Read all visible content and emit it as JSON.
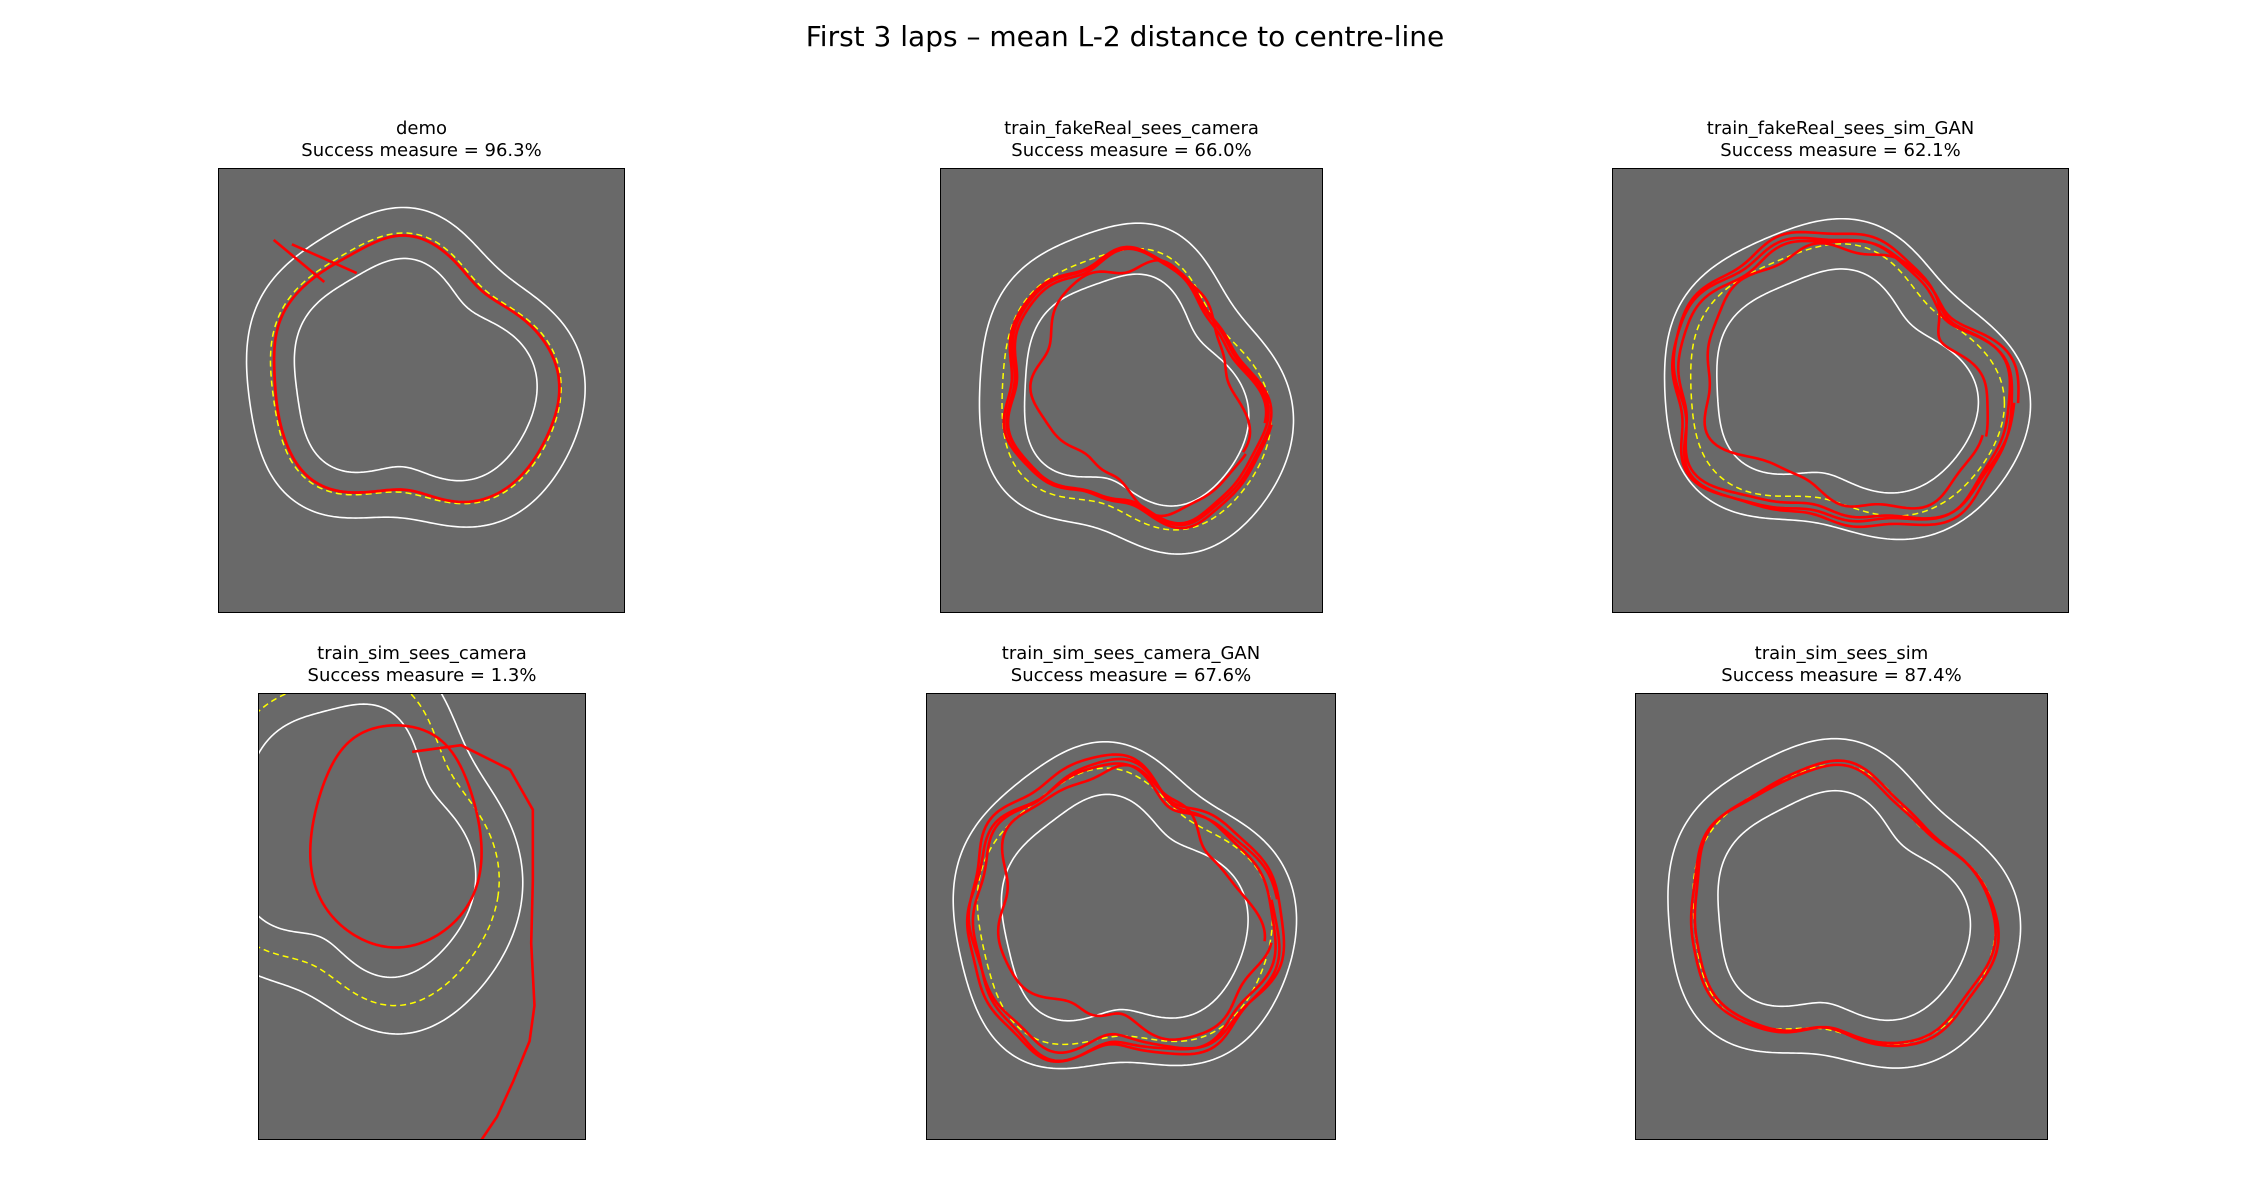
{
  "chart_data": {
    "type": "line",
    "title": "First 3 laps – mean L-2 distance to centre-line",
    "axes_visible": false,
    "grid": false,
    "colors": {
      "background": "#696969",
      "track_edges": "#ffffff",
      "centre_line": "#ffff00",
      "trajectory": "#ff0000"
    },
    "panels": [
      {
        "name": "demo",
        "success_label": "Success measure = 96.3%",
        "success_measure": 96.3,
        "series": [
          "track-outer",
          "track-inner",
          "centre-line",
          "trajectory"
        ]
      },
      {
        "name": "train_fakeReal_sees_camera",
        "success_label": "Success measure = 66.0%",
        "success_measure": 66.0,
        "series": [
          "track-outer",
          "track-inner",
          "centre-line",
          "trajectory"
        ]
      },
      {
        "name": "train_fakeReal_sees_sim_GAN",
        "success_label": "Success measure = 62.1%",
        "success_measure": 62.1,
        "series": [
          "track-outer",
          "track-inner",
          "centre-line",
          "trajectory"
        ]
      },
      {
        "name": "train_sim_sees_camera",
        "success_label": "Success measure = 1.3%",
        "success_measure": 1.3,
        "series": [
          "track-outer",
          "track-inner",
          "centre-line",
          "trajectory"
        ]
      },
      {
        "name": "train_sim_sees_camera_GAN",
        "success_label": "Success measure = 67.6%",
        "success_measure": 67.6,
        "series": [
          "track-outer",
          "track-inner",
          "centre-line",
          "trajectory"
        ]
      },
      {
        "name": "train_sim_sees_sim",
        "success_label": "Success measure = 87.4%",
        "success_measure": 87.4,
        "series": [
          "track-outer",
          "track-inner",
          "centre-line",
          "trajectory"
        ]
      }
    ]
  }
}
